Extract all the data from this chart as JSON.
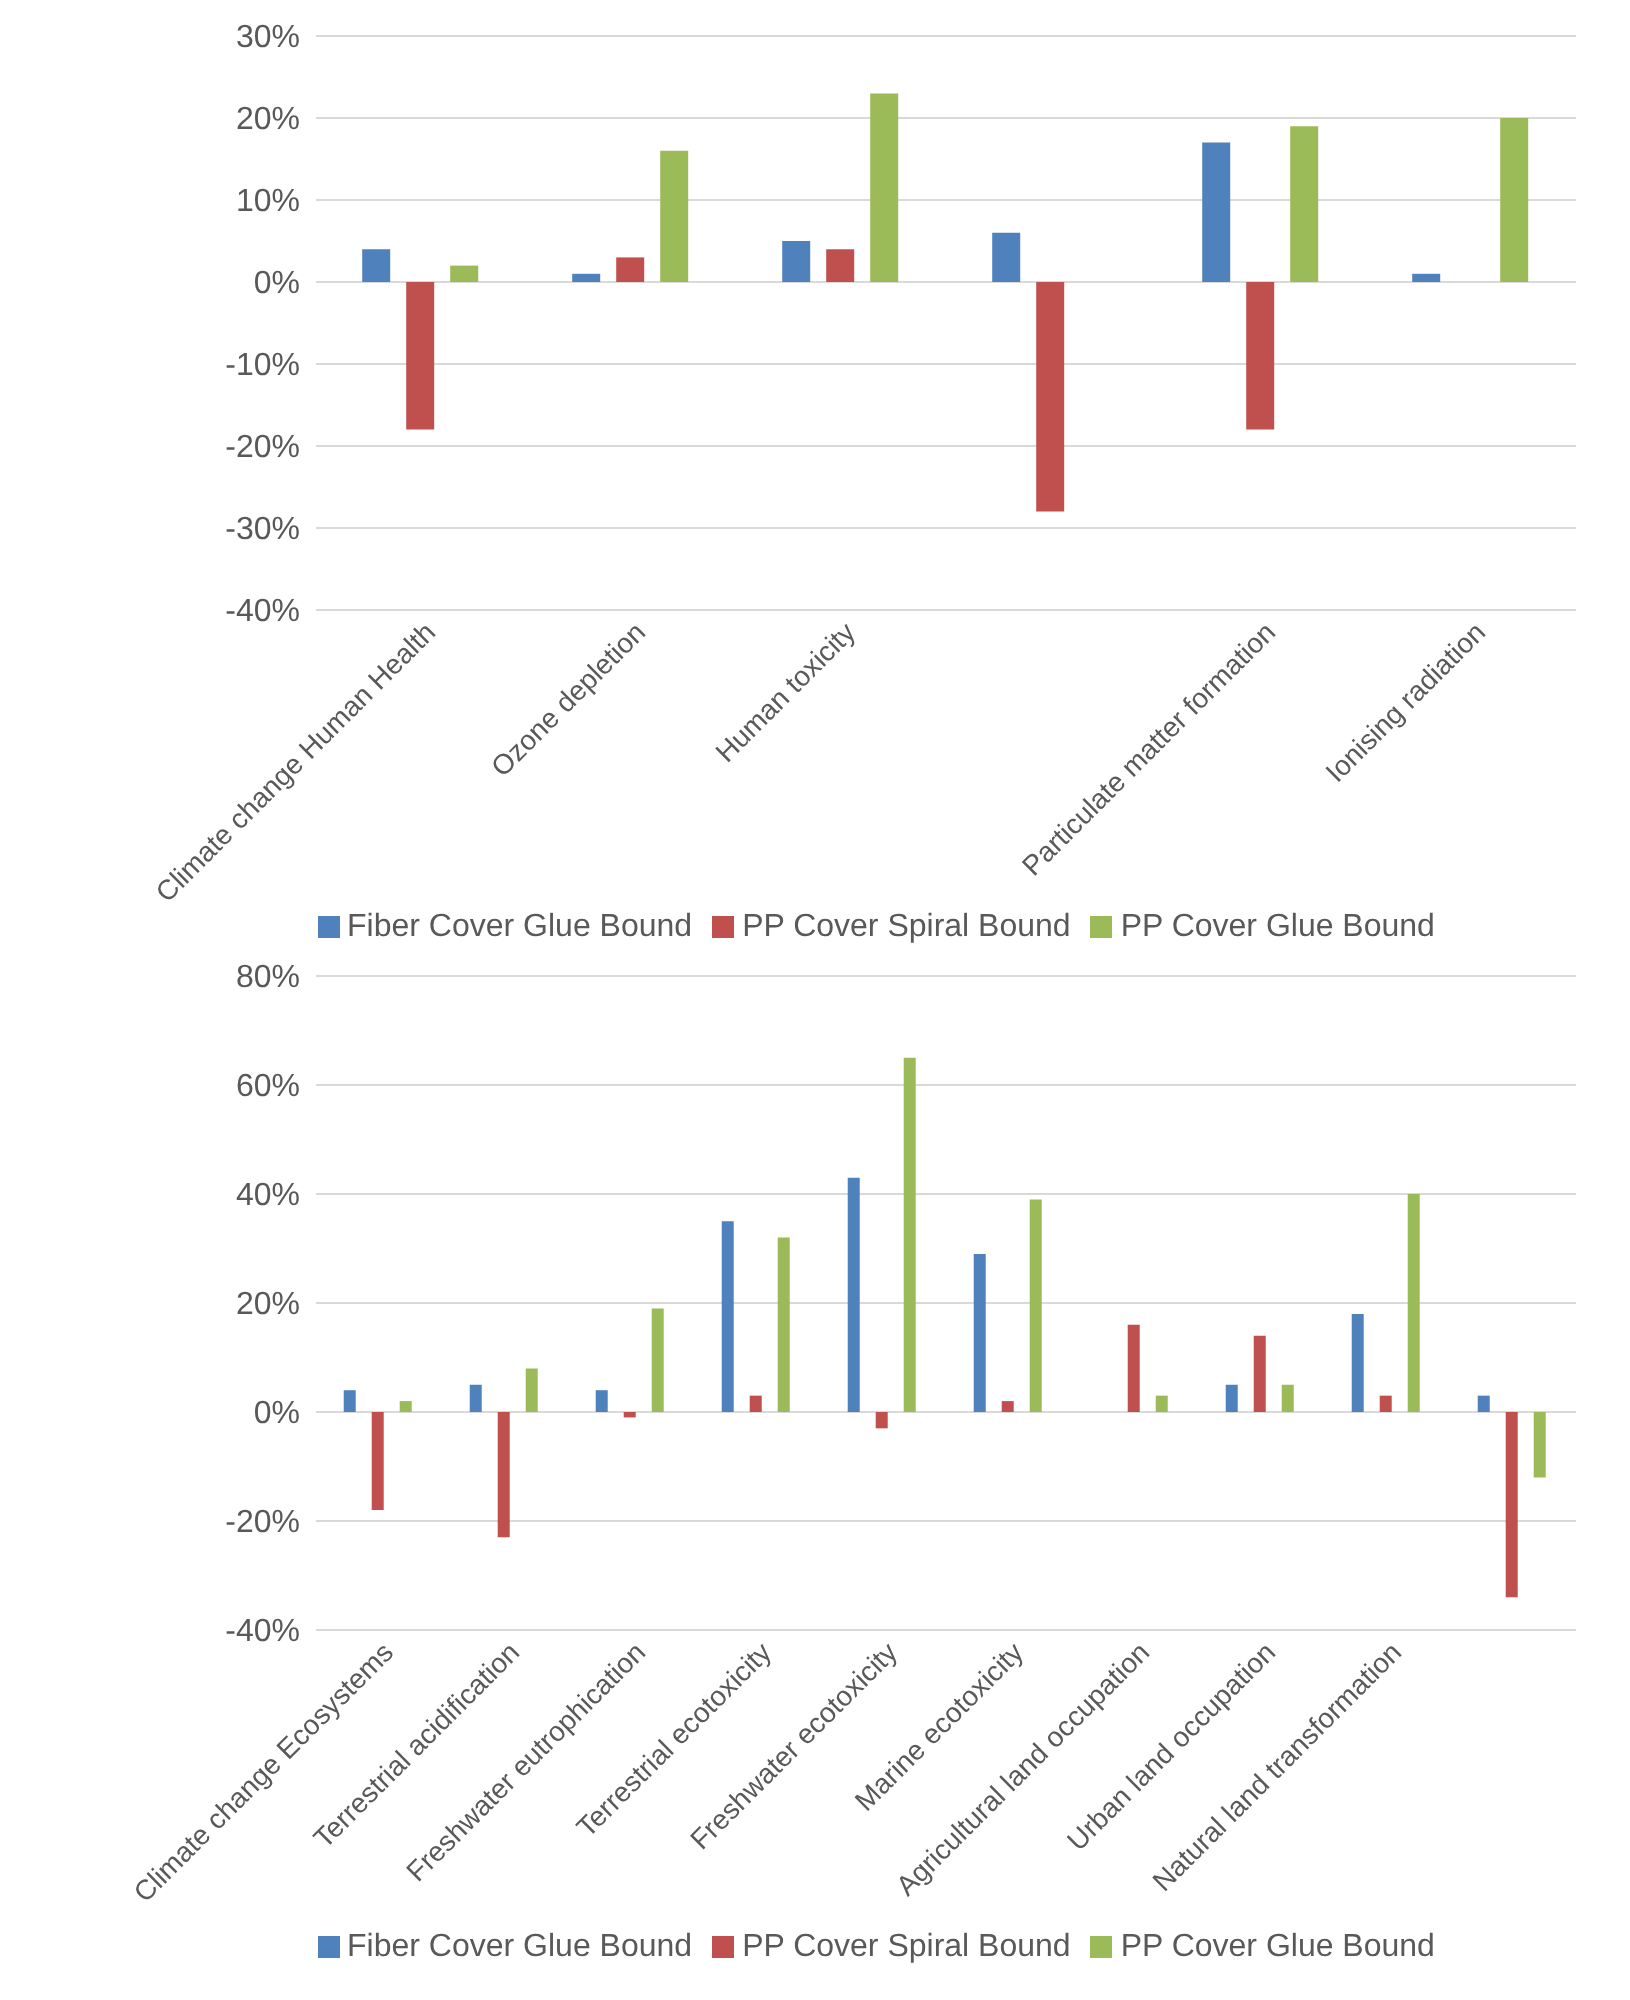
{
  "chart_data": [
    {
      "type": "bar",
      "categories": [
        "Climate change Human Health",
        "Ozone depletion",
        "Human toxicity",
        null,
        "Particulate matter formation",
        "Ionising radiation"
      ],
      "series": [
        {
          "name": "Fiber Cover Glue Bound",
          "color": "#4f81bd",
          "values": [
            4,
            1,
            5,
            6,
            17,
            1
          ]
        },
        {
          "name": "PP Cover Spiral Bound",
          "color": "#c0504d",
          "values": [
            -18,
            3,
            4,
            -28,
            -18,
            null
          ]
        },
        {
          "name": "PP Cover Glue Bound",
          "color": "#9bbb59",
          "values": [
            2,
            16,
            23,
            null,
            19,
            20
          ]
        }
      ],
      "ylim": [
        -40,
        30
      ],
      "yticks": [
        {
          "value": -40,
          "label": "-40%"
        },
        {
          "value": -30,
          "label": "-30%"
        },
        {
          "value": -20,
          "label": "-20%"
        },
        {
          "value": -10,
          "label": "-10%"
        },
        {
          "value": 0,
          "label": "0%"
        },
        {
          "value": 10,
          "label": "10%"
        },
        {
          "value": 20,
          "label": "20%"
        },
        {
          "value": 30,
          "label": "30%"
        }
      ],
      "grid": "y",
      "legend": "bottom"
    },
    {
      "type": "bar",
      "categories": [
        "Climate change Ecosystems",
        "Terrestrial acidification",
        "Freshwater eutrophication",
        "Terrestrial ecotoxicity",
        "Freshwater ecotoxicity",
        "Marine ecotoxicity",
        "Agricultural land occupation",
        "Urban land occupation",
        "Natural land transformation",
        null
      ],
      "series": [
        {
          "name": "Fiber Cover Glue Bound",
          "color": "#4f81bd",
          "values": [
            4,
            5,
            4,
            35,
            43,
            29,
            null,
            5,
            18,
            3
          ]
        },
        {
          "name": "PP Cover Spiral Bound",
          "color": "#c0504d",
          "values": [
            -18,
            -23,
            -1,
            3,
            -3,
            2,
            16,
            14,
            3,
            -34
          ]
        },
        {
          "name": "PP Cover Glue Bound",
          "color": "#9bbb59",
          "values": [
            2,
            8,
            19,
            32,
            65,
            39,
            3,
            5,
            40,
            -12
          ]
        }
      ],
      "ylim": [
        -40,
        80
      ],
      "yticks": [
        {
          "value": -40,
          "label": "-40%"
        },
        {
          "value": -20,
          "label": "-20%"
        },
        {
          "value": 0,
          "label": "0%"
        },
        {
          "value": 20,
          "label": "20%"
        },
        {
          "value": 40,
          "label": "40%"
        },
        {
          "value": 60,
          "label": "60%"
        },
        {
          "value": 80,
          "label": "80%"
        }
      ],
      "grid": "y",
      "legend": "bottom"
    }
  ]
}
